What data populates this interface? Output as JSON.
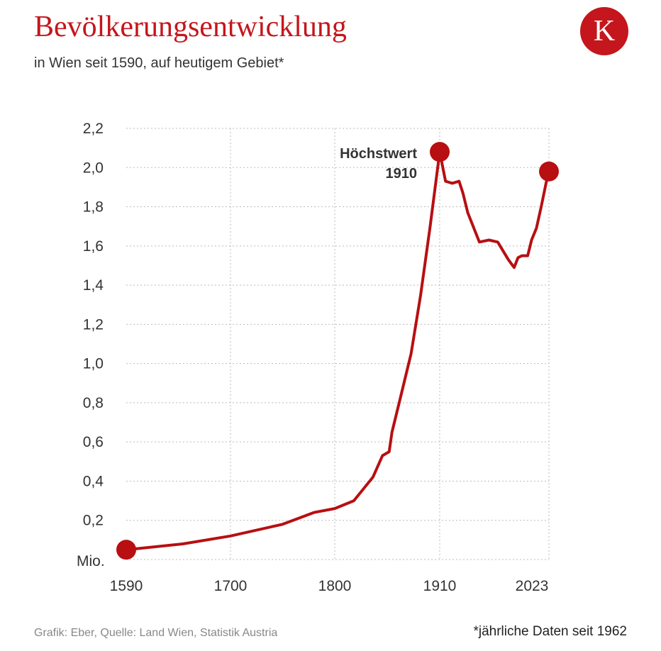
{
  "header": {
    "title": "Bevölkerungsentwicklung",
    "subtitle": "in Wien seit 1590, auf heutigem Gebiet*",
    "logo": "K"
  },
  "footer": {
    "source": "Grafik: Eber, Quelle: Land Wien, Statistik Austria",
    "note": "*jährliche Daten seit 1962"
  },
  "colors": {
    "accent": "#c4161c",
    "line": "#b70f12",
    "grid": "#bbbbbb"
  },
  "chart_data": {
    "type": "line",
    "title": "Bevölkerungsentwicklung",
    "subtitle": "in Wien seit 1590, auf heutigem Gebiet*",
    "ylabel": "Mio.",
    "ylim": [
      0,
      2.2
    ],
    "grid": true,
    "x_ticks": [
      1590,
      1700,
      1800,
      1910,
      2023
    ],
    "y_ticks": [
      "2,2",
      "2,0",
      "1,8",
      "1,6",
      "1,4",
      "1,2",
      "1,0",
      "0,8",
      "0,6",
      "0,4",
      "0,2"
    ],
    "y_tick_values": [
      2.2,
      2.0,
      1.8,
      1.6,
      1.4,
      1.2,
      1.0,
      0.8,
      0.6,
      0.4,
      0.2
    ],
    "annotation": {
      "label": "Höchstwert",
      "year": "1910"
    },
    "series": [
      {
        "x": [
          1590,
          1650,
          1700,
          1750,
          1780,
          1800,
          1820,
          1840,
          1850,
          1857,
          1860,
          1870,
          1880,
          1890,
          1900,
          1910,
          1916,
          1923,
          1930,
          1934,
          1939,
          1951,
          1961,
          1970,
          1981,
          1987,
          1991,
          1995,
          2001,
          2005,
          2010,
          2015,
          2020,
          2023
        ],
        "y": [
          0.05,
          0.08,
          0.12,
          0.18,
          0.24,
          0.26,
          0.3,
          0.42,
          0.53,
          0.55,
          0.65,
          0.85,
          1.05,
          1.35,
          1.7,
          2.08,
          1.93,
          1.92,
          1.93,
          1.87,
          1.77,
          1.62,
          1.63,
          1.62,
          1.53,
          1.49,
          1.54,
          1.55,
          1.55,
          1.63,
          1.69,
          1.8,
          1.92,
          1.98
        ]
      }
    ],
    "highlight_points": [
      1590,
      1910,
      2023
    ]
  }
}
